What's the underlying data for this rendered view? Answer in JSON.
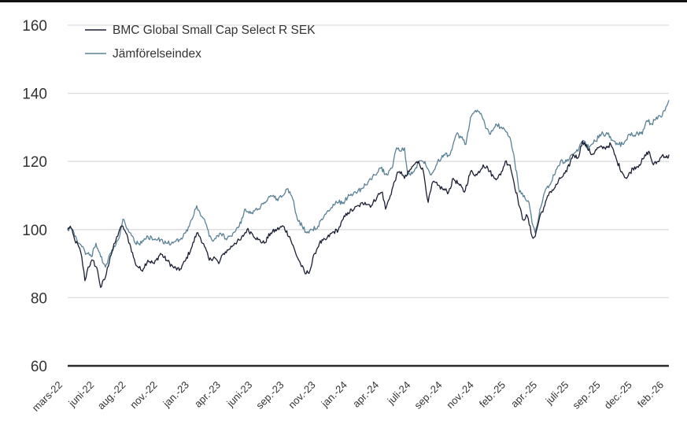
{
  "chart_data": {
    "type": "line",
    "title": "",
    "xlabel": "",
    "ylabel": "",
    "ylim": [
      60,
      160
    ],
    "yticks": [
      60,
      80,
      100,
      120,
      140,
      160
    ],
    "grid": true,
    "legend_position": "top-left",
    "x_unit": "months since mars-22",
    "xlim": [
      0,
      47
    ],
    "xtick_labels": [
      "mars-22",
      "juni-22",
      "aug.-22",
      "nov.-22",
      "jan.-23",
      "apr.-23",
      "juni-23",
      "sep.-23",
      "nov.-23",
      "jan.-24",
      "apr.-24",
      "juli-24",
      "sep.-24",
      "nov.-24",
      "feb.-25",
      "apr.-25",
      "juli-25",
      "sep.-25",
      "dec.-25",
      "feb.-26"
    ],
    "series": [
      {
        "name": "BMC Global Small Cap Select R SEK",
        "color": "#1b1f33",
        "points": [
          [
            0,
            100
          ],
          [
            0.2,
            101
          ],
          [
            0.55,
            97
          ],
          [
            0.86,
            95
          ],
          [
            1.1,
            92
          ],
          [
            1.35,
            85
          ],
          [
            1.6,
            89
          ],
          [
            1.97,
            91
          ],
          [
            2.34,
            88
          ],
          [
            2.58,
            83
          ],
          [
            2.95,
            86
          ],
          [
            3.32,
            92
          ],
          [
            3.69,
            96
          ],
          [
            4.06,
            100
          ],
          [
            4.31,
            101
          ],
          [
            4.55,
            99
          ],
          [
            4.92,
            95
          ],
          [
            5.29,
            90
          ],
          [
            5.78,
            88
          ],
          [
            6.27,
            91
          ],
          [
            6.77,
            90
          ],
          [
            7.26,
            93
          ],
          [
            7.75,
            91
          ],
          [
            8.24,
            89
          ],
          [
            8.73,
            88
          ],
          [
            9.22,
            91
          ],
          [
            9.72,
            95
          ],
          [
            10.09,
            99
          ],
          [
            10.33,
            98
          ],
          [
            10.7,
            95
          ],
          [
            11.07,
            91
          ],
          [
            11.44,
            92
          ],
          [
            11.81,
            90
          ],
          [
            12.18,
            93
          ],
          [
            12.55,
            94
          ],
          [
            13.04,
            96
          ],
          [
            13.53,
            97
          ],
          [
            14.02,
            100
          ],
          [
            14.39,
            99
          ],
          [
            14.88,
            97
          ],
          [
            15.37,
            96
          ],
          [
            15.87,
            99
          ],
          [
            16.36,
            100
          ],
          [
            16.85,
            101
          ],
          [
            17.34,
            98
          ],
          [
            17.83,
            93
          ],
          [
            18.2,
            90
          ],
          [
            18.57,
            87
          ],
          [
            18.94,
            88
          ],
          [
            19.31,
            93
          ],
          [
            19.68,
            96
          ],
          [
            20.17,
            97
          ],
          [
            20.66,
            99
          ],
          [
            21.16,
            100
          ],
          [
            21.53,
            103
          ],
          [
            21.9,
            105
          ],
          [
            22.39,
            106
          ],
          [
            22.76,
            107
          ],
          [
            23.25,
            108
          ],
          [
            23.74,
            107
          ],
          [
            24.23,
            110
          ],
          [
            24.6,
            111
          ],
          [
            24.85,
            106
          ],
          [
            25.22,
            110
          ],
          [
            25.71,
            116
          ],
          [
            26.08,
            117
          ],
          [
            26.33,
            115
          ],
          [
            26.7,
            117
          ],
          [
            27.07,
            119
          ],
          [
            27.44,
            120
          ],
          [
            27.81,
            117
          ],
          [
            28.18,
            108
          ],
          [
            28.55,
            114
          ],
          [
            28.92,
            113
          ],
          [
            29.29,
            112
          ],
          [
            29.78,
            111
          ],
          [
            30.15,
            115
          ],
          [
            30.64,
            113
          ],
          [
            31.01,
            111
          ],
          [
            31.5,
            117
          ],
          [
            31.99,
            116
          ],
          [
            32.48,
            119
          ],
          [
            32.85,
            118
          ],
          [
            33.35,
            115
          ],
          [
            33.84,
            116
          ],
          [
            34.21,
            120
          ],
          [
            34.58,
            119
          ],
          [
            34.82,
            115
          ],
          [
            35.19,
            109
          ],
          [
            35.56,
            103
          ],
          [
            35.93,
            104
          ],
          [
            36.3,
            98
          ],
          [
            36.55,
            98
          ],
          [
            36.92,
            104
          ],
          [
            37.29,
            107
          ],
          [
            37.66,
            111
          ],
          [
            38.03,
            112
          ],
          [
            38.52,
            115
          ],
          [
            39.01,
            117
          ],
          [
            39.51,
            122
          ],
          [
            39.88,
            121
          ],
          [
            40.25,
            126
          ],
          [
            40.62,
            124
          ],
          [
            40.99,
            122
          ],
          [
            41.48,
            124
          ],
          [
            41.97,
            124
          ],
          [
            42.46,
            125
          ],
          [
            42.95,
            120
          ],
          [
            43.32,
            117
          ],
          [
            43.69,
            115
          ],
          [
            44.18,
            118
          ],
          [
            44.68,
            119
          ],
          [
            45.05,
            121
          ],
          [
            45.42,
            123
          ],
          [
            45.79,
            119
          ],
          [
            46.16,
            120
          ],
          [
            46.53,
            122
          ],
          [
            46.9,
            121
          ],
          [
            47,
            122
          ]
        ]
      },
      {
        "name": "Jämförelseindex",
        "color": "#5b8296",
        "points": [
          [
            0,
            100
          ],
          [
            0.2,
            101
          ],
          [
            0.55,
            98
          ],
          [
            0.86,
            96
          ],
          [
            1.1,
            95
          ],
          [
            1.48,
            93
          ],
          [
            1.85,
            92
          ],
          [
            2.21,
            96
          ],
          [
            2.58,
            92
          ],
          [
            2.95,
            89
          ],
          [
            3.32,
            93
          ],
          [
            3.69,
            95
          ],
          [
            4.06,
            98
          ],
          [
            4.31,
            103
          ],
          [
            4.55,
            101
          ],
          [
            4.92,
            99
          ],
          [
            5.29,
            96
          ],
          [
            5.78,
            96
          ],
          [
            6.27,
            98
          ],
          [
            6.77,
            97
          ],
          [
            7.26,
            97
          ],
          [
            7.75,
            96
          ],
          [
            8.24,
            96
          ],
          [
            8.73,
            97
          ],
          [
            9.22,
            99
          ],
          [
            9.72,
            103
          ],
          [
            10.09,
            107
          ],
          [
            10.33,
            105
          ],
          [
            10.7,
            103
          ],
          [
            11.07,
            98
          ],
          [
            11.44,
            97
          ],
          [
            11.93,
            99
          ],
          [
            12.42,
            97
          ],
          [
            12.92,
            99
          ],
          [
            13.41,
            101
          ],
          [
            13.9,
            106
          ],
          [
            14.39,
            105
          ],
          [
            14.88,
            106
          ],
          [
            15.37,
            108
          ],
          [
            15.87,
            110
          ],
          [
            16.36,
            109
          ],
          [
            16.85,
            110
          ],
          [
            17.22,
            112
          ],
          [
            17.59,
            109
          ],
          [
            17.96,
            103
          ],
          [
            18.33,
            101
          ],
          [
            18.7,
            99
          ],
          [
            19.07,
            100
          ],
          [
            19.56,
            101
          ],
          [
            20.05,
            104
          ],
          [
            20.54,
            106
          ],
          [
            21.04,
            108
          ],
          [
            21.53,
            108
          ],
          [
            22.02,
            110
          ],
          [
            22.51,
            111
          ],
          [
            23.0,
            112
          ],
          [
            23.49,
            114
          ],
          [
            23.99,
            116
          ],
          [
            24.48,
            118
          ],
          [
            24.97,
            116
          ],
          [
            25.34,
            118
          ],
          [
            25.71,
            124
          ],
          [
            26.08,
            123
          ],
          [
            26.33,
            124
          ],
          [
            26.58,
            116
          ],
          [
            27.07,
            117
          ],
          [
            27.44,
            120
          ],
          [
            27.93,
            120
          ],
          [
            28.42,
            116
          ],
          [
            28.92,
            120
          ],
          [
            29.41,
            122
          ],
          [
            29.9,
            122
          ],
          [
            30.39,
            128
          ],
          [
            30.76,
            127
          ],
          [
            31.13,
            125
          ],
          [
            31.5,
            133
          ],
          [
            31.87,
            135
          ],
          [
            32.24,
            134
          ],
          [
            32.61,
            131
          ],
          [
            32.98,
            128
          ],
          [
            33.47,
            131
          ],
          [
            33.84,
            130
          ],
          [
            34.21,
            129
          ],
          [
            34.58,
            127
          ],
          [
            34.95,
            120
          ],
          [
            35.32,
            111
          ],
          [
            35.69,
            110
          ],
          [
            36.06,
            108
          ],
          [
            36.3,
            102
          ],
          [
            36.55,
            99
          ],
          [
            36.92,
            106
          ],
          [
            37.29,
            111
          ],
          [
            37.66,
            113
          ],
          [
            38.03,
            116
          ],
          [
            38.52,
            120
          ],
          [
            39.01,
            120
          ],
          [
            39.51,
            122
          ],
          [
            39.88,
            123
          ],
          [
            40.25,
            126
          ],
          [
            40.74,
            124
          ],
          [
            41.23,
            126
          ],
          [
            41.72,
            128
          ],
          [
            42.21,
            128
          ],
          [
            42.71,
            126
          ],
          [
            43.08,
            125
          ],
          [
            43.45,
            125
          ],
          [
            43.94,
            128
          ],
          [
            44.43,
            128
          ],
          [
            44.92,
            128
          ],
          [
            45.29,
            132
          ],
          [
            45.66,
            131
          ],
          [
            46.03,
            133
          ],
          [
            46.4,
            133
          ],
          [
            46.77,
            136
          ],
          [
            47,
            138
          ]
        ]
      }
    ]
  }
}
